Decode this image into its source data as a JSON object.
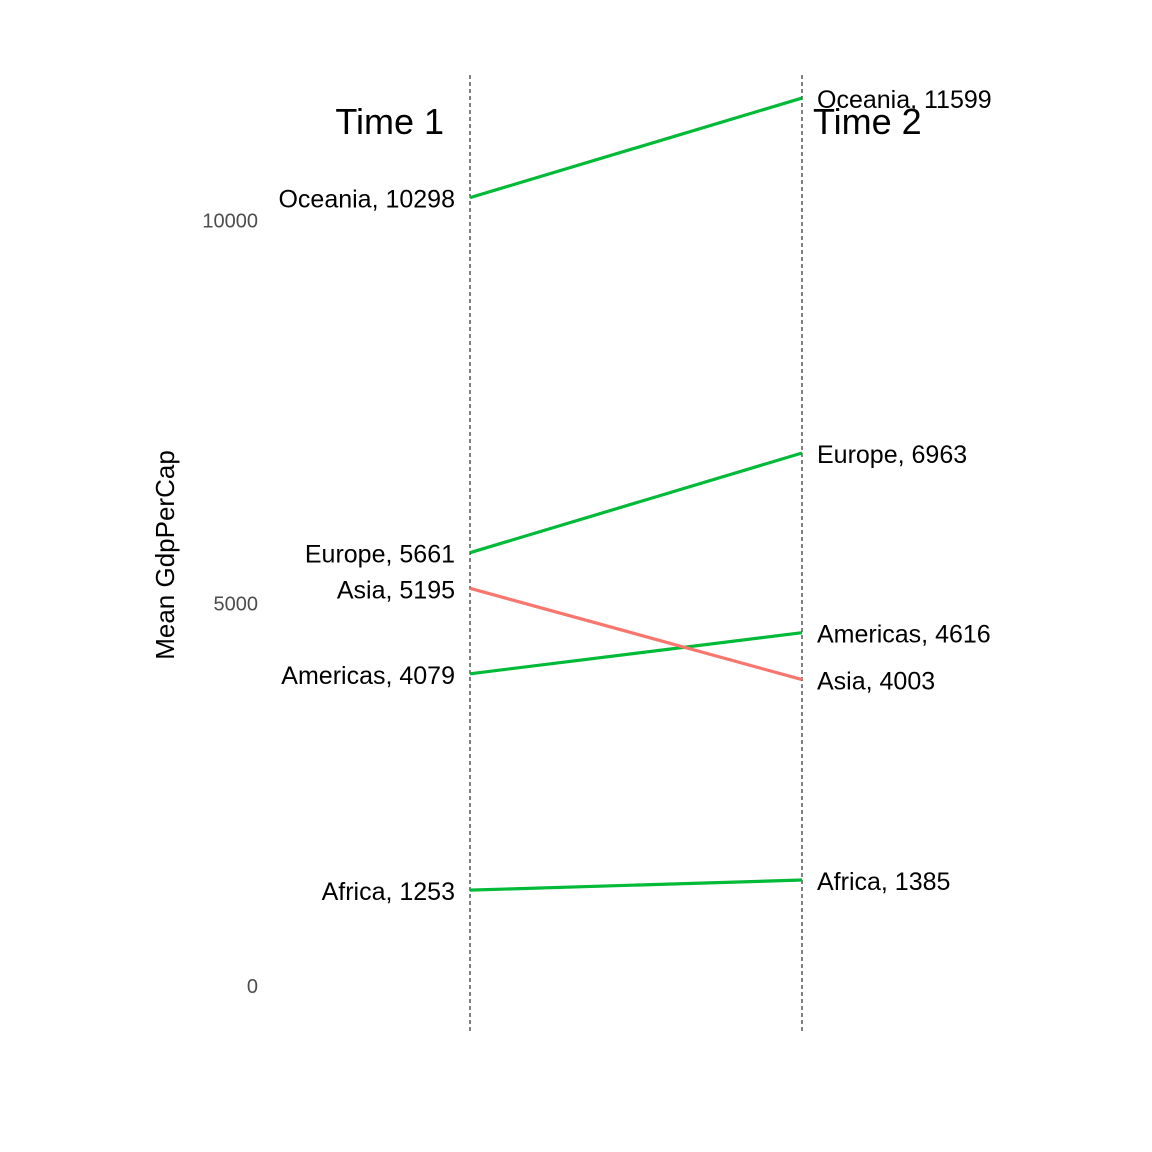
{
  "chart_data": {
    "type": "line",
    "subtype": "slopegraph",
    "ylabel": "Mean GdpPerCap",
    "ylim": [
      -600,
      11900
    ],
    "yticks": [
      0,
      5000,
      10000
    ],
    "ytick_labels": [
      "0",
      "5000",
      "10000"
    ],
    "time_labels": [
      "Time 1",
      "Time 2"
    ],
    "colors": {
      "increase": "#00ba38",
      "decrease": "#f8766d"
    },
    "series": [
      {
        "name": "Africa",
        "values": [
          1253,
          1385
        ],
        "labels": [
          "Africa, 1253",
          "Africa, 1385"
        ]
      },
      {
        "name": "Americas",
        "values": [
          4079,
          4616
        ],
        "labels": [
          "Americas, 4079",
          "Americas, 4616"
        ]
      },
      {
        "name": "Asia",
        "values": [
          5195,
          4003
        ],
        "labels": [
          "Asia, 5195",
          "Asia, 4003"
        ]
      },
      {
        "name": "Europe",
        "values": [
          5661,
          6963
        ],
        "labels": [
          "Europe, 5661",
          "Europe, 6963"
        ]
      },
      {
        "name": "Oceania",
        "values": [
          10298,
          11599
        ],
        "labels": [
          "Oceania, 10298",
          "Oceania, 11599"
        ]
      }
    ]
  }
}
